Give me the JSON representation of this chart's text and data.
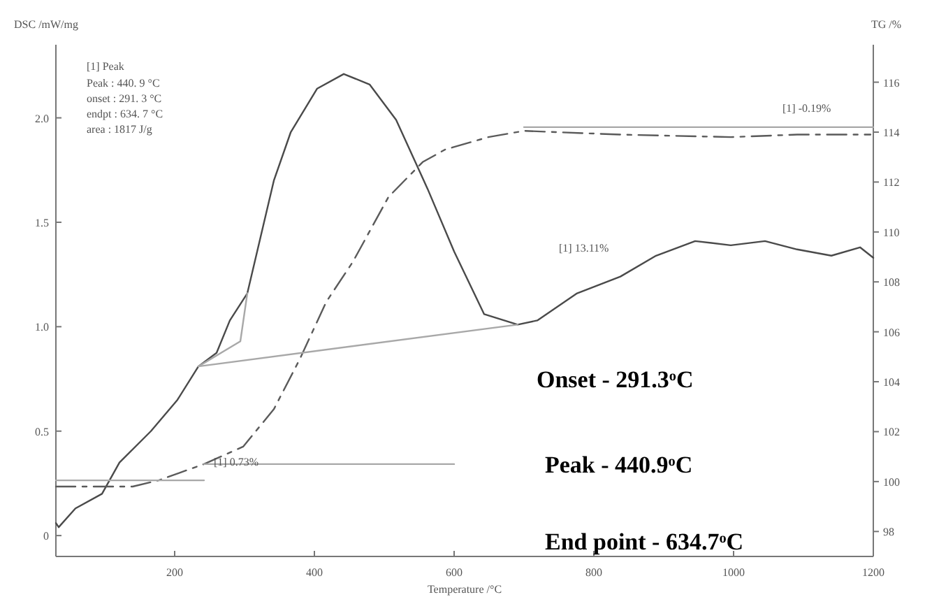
{
  "chart_data": {
    "type": "line",
    "xlabel": "Temperature /°C",
    "ylabel": "DSC /mW/mg",
    "y2label": "TG /%",
    "xlim": [
      30,
      1200
    ],
    "xticks": [
      200,
      400,
      600,
      800,
      1000,
      1200
    ],
    "ylim": [
      -0.1,
      2.35
    ],
    "yticks": [
      0,
      {
        "value": 0.5,
        "label": "0.5"
      },
      {
        "value": 1,
        "label": "1.0"
      },
      {
        "value": 1.5,
        "label": "1.5"
      },
      {
        "value": 2,
        "label": "2.0"
      }
    ],
    "y2lim": [
      97,
      117.5
    ],
    "y2ticks": [
      98,
      100,
      102,
      104,
      106,
      108,
      110,
      112,
      114,
      116
    ],
    "grid": false,
    "series": [
      {
        "color": "#4a4a4a",
        "line_style": "solid",
        "x": [
          30,
          34,
          58,
          96,
          121,
          166,
          204,
          234,
          260,
          279,
          304,
          342,
          366,
          404,
          442,
          479,
          517,
          562,
          600,
          643,
          691,
          719,
          776,
          838,
          889,
          945,
          996,
          1045,
          1091,
          1140,
          1181,
          1200
        ],
        "values": [
          0.06,
          0.04,
          0.13,
          0.2,
          0.35,
          0.5,
          0.65,
          0.81,
          0.875,
          1.03,
          1.16,
          1.7,
          1.93,
          2.14,
          2.21,
          2.16,
          1.99,
          1.66,
          1.36,
          1.06,
          1.01,
          1.03,
          1.16,
          1.24,
          1.34,
          1.41,
          1.39,
          1.41,
          1.37,
          1.34,
          1.38,
          1.33
        ]
      },
      {
        "color": "#5a5a5a",
        "line_style": "dashed",
        "axis": "y2",
        "x": [
          30,
          140,
          177,
          242,
          298,
          342,
          379,
          417,
          455,
          506,
          555,
          587,
          649,
          700,
          838,
          996,
          1091,
          1196
        ],
        "values": [
          99.8,
          99.8,
          100.05,
          100.7,
          101.4,
          102.9,
          104.9,
          107.2,
          108.8,
          111.4,
          112.8,
          113.3,
          113.8,
          114.05,
          113.9,
          113.8,
          113.9,
          113.9
        ]
      },
      {
        "color": "#a8a8a8",
        "line_style": "solid",
        "x": [
          234,
          691
        ],
        "values": [
          0.81,
          1.01
        ]
      },
      {
        "color": "#a8a8a8",
        "line_style": "solid",
        "x": [
          234,
          294,
          304
        ],
        "values": [
          0.81,
          0.93,
          1.16
        ]
      },
      {
        "color": "#a8a8a8",
        "line_style": "solid",
        "axis": "y2",
        "x": [
          30,
          242
        ],
        "values": [
          100.05,
          100.05
        ]
      },
      {
        "color": "#a8a8a8",
        "line_style": "solid",
        "axis": "y2",
        "x": [
          242,
          600
        ],
        "values": [
          100.7,
          100.7
        ]
      },
      {
        "color": "#a8a8a8",
        "line_style": "solid",
        "axis": "y2",
        "x": [
          700,
          1200
        ],
        "values": [
          114.2,
          114.2
        ]
      }
    ],
    "annotations": [
      "[1] Peak",
      "Peak  :  440. 9 °C",
      "onset  :  291. 3 °C",
      "endpt  :  634. 7 °C",
      "area  : 1817 J/g",
      "[1] 13.11%",
      "[1] -0.19%",
      "[1] 0.73%",
      "Onset - 291.3$^{o}$C",
      "Peak - 440.9$^{o}$C",
      "End point - 634.7$^{o}$C"
    ]
  }
}
